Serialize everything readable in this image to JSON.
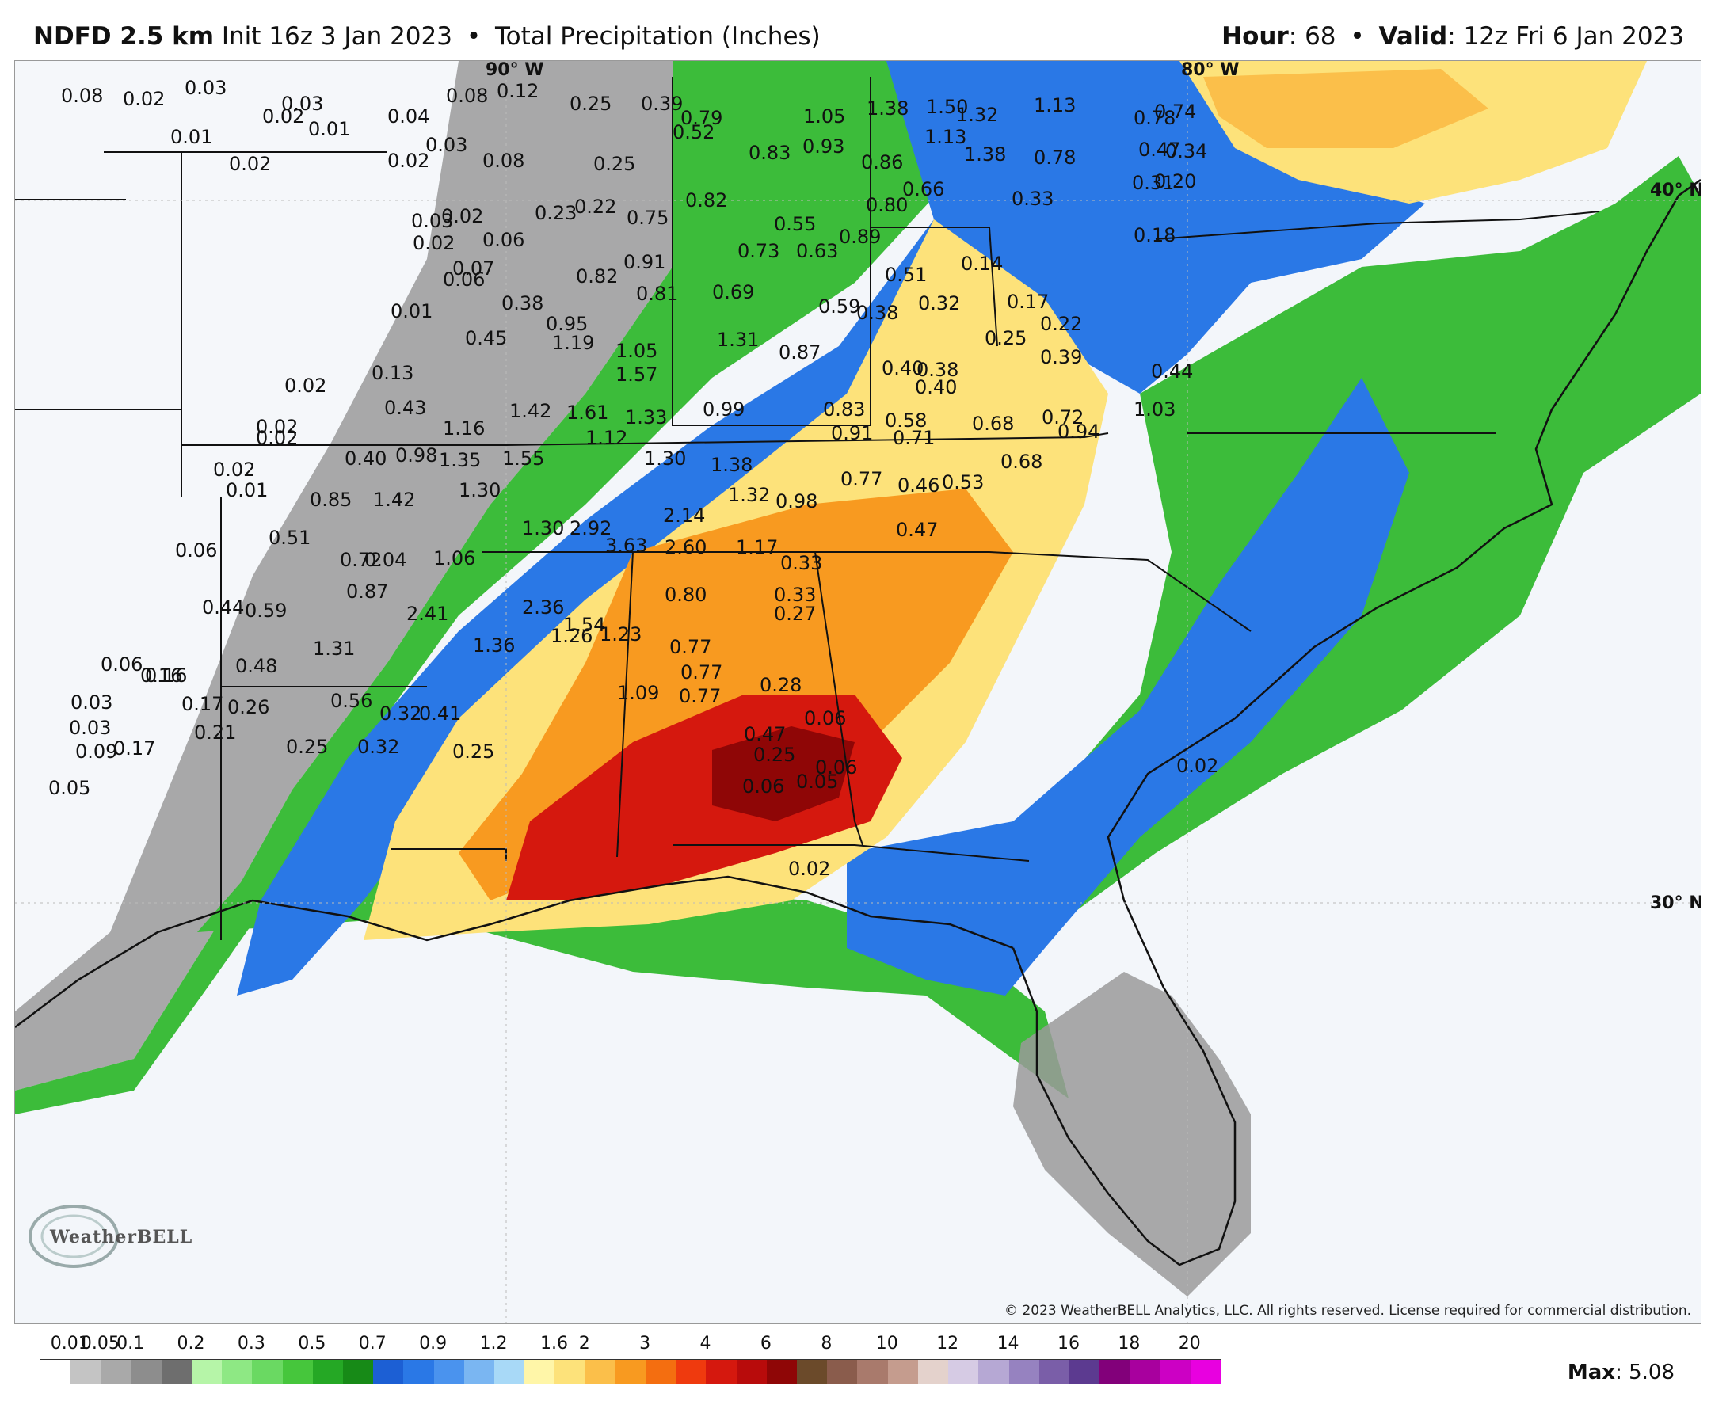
{
  "header": {
    "model": "NDFD 2.5 km",
    "init": "Init 16z 3 Jan 2023",
    "bullet": "•",
    "product": "Total Precipitation (Inches)",
    "hour_label": "Hour",
    "hour_value": ": 68",
    "valid_label": "Valid",
    "valid_value": ": 12z Fri 6 Jan 2023"
  },
  "map": {
    "graticule_labels": [
      "90° W",
      "80° W",
      "40° N",
      "30° N"
    ],
    "copyright": "© 2023 WeatherBELL Analytics, LLC. All rights reserved. License required for commercial distribution.",
    "logo_text": "WeatherBELL",
    "value_labels": [
      "0.08",
      "0.02",
      "0.03",
      "0.03",
      "0.02",
      "0.01",
      "0.04",
      "0.08",
      "0.12",
      "0.25",
      "0.39",
      "0.79",
      "0.52",
      "1.05",
      "1.38",
      "1.50",
      "1.32",
      "1.13",
      "0.74",
      "0.78",
      "0.01",
      "0.02",
      "0.03",
      "0.02",
      "0.08",
      "0.25",
      "0.83",
      "0.93",
      "1.13",
      "1.38",
      "0.86",
      "0.78",
      "0.47",
      "0.34",
      "0.82",
      "0.66",
      "0.80",
      "0.33",
      "0.31",
      "0.20",
      "0.03",
      "0.02",
      "0.02",
      "0.06",
      "0.23",
      "0.22",
      "0.75",
      "0.55",
      "0.89",
      "0.73",
      "0.63",
      "0.91",
      "0.14",
      "0.18",
      "0.07",
      "0.06",
      "0.82",
      "0.81",
      "0.69",
      "0.51",
      "0.32",
      "0.17",
      "0.01",
      "0.38",
      "0.59",
      "0.38",
      "0.22",
      "0.95",
      "0.45",
      "1.19",
      "1.05",
      "1.31",
      "0.87",
      "0.25",
      "0.39",
      "0.40",
      "0.38",
      "0.40",
      "0.44",
      "0.13",
      "1.57",
      "0.02",
      "1.42",
      "1.61",
      "1.33",
      "0.99",
      "0.83",
      "0.58",
      "0.68",
      "0.72",
      "0.43",
      "1.03",
      "0.94",
      "0.02",
      "0.02",
      "1.16",
      "1.12",
      "0.91",
      "0.71",
      "0.40",
      "0.98",
      "1.35",
      "1.55",
      "1.30",
      "1.38",
      "0.68",
      "0.02",
      "0.77",
      "0.53",
      "0.46",
      "0.01",
      "1.30",
      "0.85",
      "1.42",
      "1.32",
      "0.98",
      "2.14",
      "0.47",
      "1.30",
      "2.92",
      "0.51",
      "0.06",
      "3.63",
      "2.60",
      "1.17",
      "0.72",
      "0.04",
      "1.06",
      "0.33",
      "0.87",
      "0.80",
      "0.33",
      "0.44",
      "0.59",
      "2.41",
      "2.36",
      "0.27",
      "1.54",
      "1.31",
      "1.26",
      "1.23",
      "0.77",
      "1.36",
      "0.06",
      "0.16",
      "0.16",
      "0.48",
      "0.77",
      "0.28",
      "0.03",
      "0.17",
      "0.26",
      "1.09",
      "0.77",
      "0.56",
      "0.32",
      "0.41",
      "0.06",
      "0.03",
      "0.21",
      "0.47",
      "0.09",
      "0.17",
      "0.25",
      "0.32",
      "0.25",
      "0.25",
      "0.06",
      "0.05",
      "0.06",
      "0.05",
      "0.02",
      "0.02"
    ]
  },
  "legend": {
    "labels": [
      "0.01",
      "0.05",
      "0.1",
      "0.2",
      "0.3",
      "0.5",
      "0.7",
      "0.9",
      "1.2",
      "1.6",
      "2",
      "3",
      "4",
      "6",
      "8",
      "10",
      "12",
      "14",
      "16",
      "18",
      "20"
    ],
    "colors": [
      "#ffffff",
      "#c4c4c4",
      "#a9a9a9",
      "#8d8d8d",
      "#6e6e6e",
      "#b6f5a8",
      "#8ee884",
      "#6ad962",
      "#46c63c",
      "#25a825",
      "#178a17",
      "#1c5fd4",
      "#2a78e6",
      "#4a93ee",
      "#7ab6f2",
      "#a8d9f7",
      "#fff6a8",
      "#fde27a",
      "#fbbf4a",
      "#f89a20",
      "#f46e10",
      "#ef3a0e",
      "#d5180e",
      "#b80b0b",
      "#8f0606",
      "#6b4a2a",
      "#8a5c4c",
      "#a97a6c",
      "#c59c8e",
      "#e4d2cc",
      "#d6cbe4",
      "#b6a8d4",
      "#9682c0",
      "#7a5ea8",
      "#5c3a90",
      "#82007a",
      "#a8009e",
      "#cc00c4",
      "#e800e0"
    ],
    "max_label": "Max",
    "max_value": ": 5.08"
  }
}
